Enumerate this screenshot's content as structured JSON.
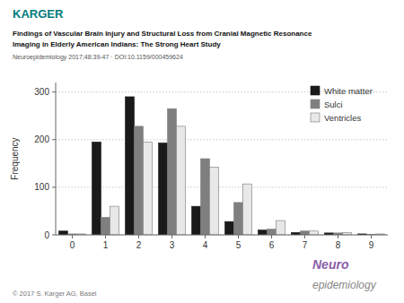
{
  "chart_data": {
    "type": "bar",
    "title": [
      "Findings of Vascular Brain Injury and Structural Loss from Cranial Magnetic Resonance",
      "Imaging in Elderly American Indians: The Strong Heart Study"
    ],
    "subtitle": "Neuroepidemiology 2017;48:39-47 · DOI:10.1159/000459624",
    "annotations": [
      "KARGER",
      "Neuro",
      "epidemiology",
      "© 2017 S. Karger AG, Basel"
    ],
    "y_label": "Frequency",
    "categories": [
      "0",
      "1",
      "2",
      "3",
      "4",
      "5",
      "6",
      "7",
      "8",
      "9"
    ],
    "series": [
      {
        "name": "White matter",
        "color": "#1a1a1a",
        "values": [
          8,
          195,
          290,
          193,
          60,
          28,
          10,
          5,
          4,
          2
        ]
      },
      {
        "name": "Sulci",
        "color": "#7f7f7f",
        "values": [
          2,
          37,
          228,
          265,
          160,
          68,
          12,
          8,
          4,
          1
        ]
      },
      {
        "name": "Ventricles",
        "color": "#e8e8e8",
        "values": [
          2,
          60,
          195,
          228,
          142,
          107,
          30,
          8,
          5,
          2
        ]
      }
    ],
    "ylim": [
      0,
      320
    ],
    "yticks": [
      0,
      100,
      200,
      300
    ],
    "grid": true,
    "legend": "upper right"
  }
}
